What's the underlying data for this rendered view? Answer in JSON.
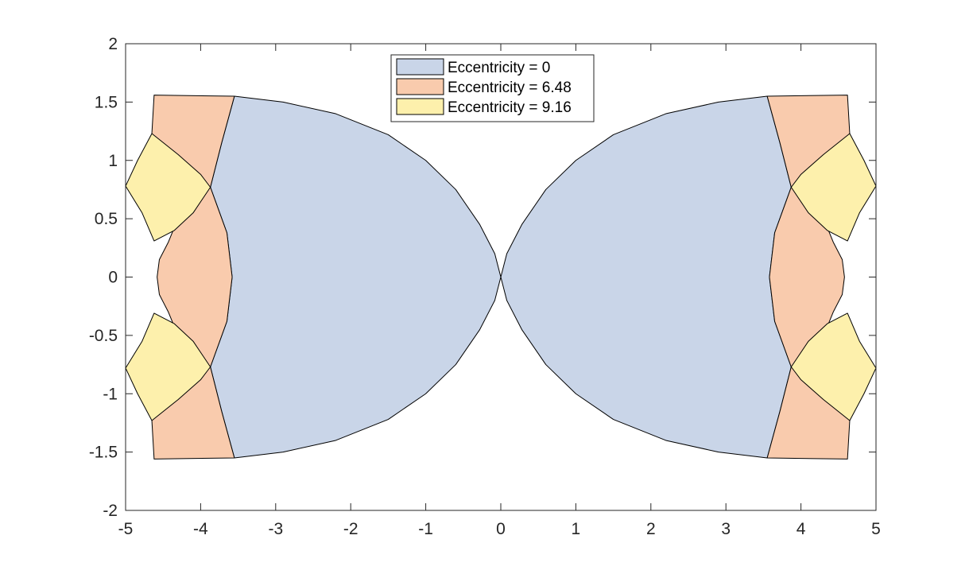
{
  "chart_data": {
    "type": "area",
    "title": "",
    "xlabel": "",
    "ylabel": "",
    "xlim": [
      -5,
      5
    ],
    "ylim": [
      -2,
      2
    ],
    "xticks": [
      "-5",
      "-4",
      "-3",
      "-2",
      "-1",
      "0",
      "1",
      "2",
      "3",
      "4",
      "5"
    ],
    "yticks": [
      "2",
      "1.5",
      "1",
      "0.5",
      "0",
      "-0.5",
      "-1",
      "-1.5",
      "-2"
    ],
    "grid": false,
    "legend_position": "top-center",
    "series": [
      {
        "name": "Eccentricity = 0",
        "color": "#c9d5e8",
        "regions": [
          {
            "points": [
              [
                -3.55,
                1.55
              ],
              [
                -2.9,
                1.5
              ],
              [
                -2.2,
                1.4
              ],
              [
                -1.5,
                1.22
              ],
              [
                -1.0,
                1.0
              ],
              [
                -0.6,
                0.75
              ],
              [
                -0.28,
                0.45
              ],
              [
                -0.08,
                0.2
              ],
              [
                0,
                0
              ],
              [
                -0.08,
                -0.2
              ],
              [
                -0.28,
                -0.45
              ],
              [
                -0.6,
                -0.75
              ],
              [
                -1.0,
                -1.0
              ],
              [
                -1.5,
                -1.22
              ],
              [
                -2.2,
                -1.4
              ],
              [
                -2.9,
                -1.5
              ],
              [
                -3.55,
                -1.55
              ],
              [
                -3.72,
                -1.15
              ],
              [
                -3.87,
                -0.77
              ],
              [
                -3.65,
                -0.38
              ],
              [
                -3.58,
                0
              ],
              [
                -3.65,
                0.38
              ],
              [
                -3.87,
                0.77
              ],
              [
                -3.72,
                1.15
              ]
            ]
          },
          {
            "points": [
              [
                3.55,
                1.55
              ],
              [
                2.9,
                1.5
              ],
              [
                2.2,
                1.4
              ],
              [
                1.5,
                1.22
              ],
              [
                1.0,
                1.0
              ],
              [
                0.6,
                0.75
              ],
              [
                0.28,
                0.45
              ],
              [
                0.08,
                0.2
              ],
              [
                0,
                0
              ],
              [
                0.08,
                -0.2
              ],
              [
                0.28,
                -0.45
              ],
              [
                0.6,
                -0.75
              ],
              [
                1.0,
                -1.0
              ],
              [
                1.5,
                -1.22
              ],
              [
                2.2,
                -1.4
              ],
              [
                2.9,
                -1.5
              ],
              [
                3.55,
                -1.55
              ],
              [
                3.72,
                -1.15
              ],
              [
                3.87,
                -0.77
              ],
              [
                3.65,
                -0.38
              ],
              [
                3.58,
                0
              ],
              [
                3.65,
                0.38
              ],
              [
                3.87,
                0.77
              ],
              [
                3.72,
                1.15
              ]
            ]
          }
        ]
      },
      {
        "name": "Eccentricity = 6.48",
        "color": "#f9cbad",
        "regions": [
          {
            "points": [
              [
                -4.62,
                1.56
              ],
              [
                -3.55,
                1.55
              ],
              [
                -3.72,
                1.15
              ],
              [
                -3.87,
                0.77
              ],
              [
                -3.65,
                0.38
              ],
              [
                -3.58,
                0
              ],
              [
                -3.65,
                -0.38
              ],
              [
                -3.87,
                -0.77
              ],
              [
                -3.72,
                -1.15
              ],
              [
                -3.55,
                -1.55
              ],
              [
                -4.62,
                -1.56
              ],
              [
                -4.65,
                -1.23
              ],
              [
                -4.43,
                -0.99
              ],
              [
                -4.29,
                -0.76
              ],
              [
                -4.29,
                -0.52
              ],
              [
                -4.43,
                -0.3
              ],
              [
                -4.55,
                -0.15
              ],
              [
                -4.58,
                0
              ],
              [
                -4.55,
                0.15
              ],
              [
                -4.43,
                0.3
              ],
              [
                -4.29,
                0.52
              ],
              [
                -4.29,
                0.76
              ],
              [
                -4.43,
                0.99
              ],
              [
                -4.65,
                1.23
              ]
            ]
          },
          {
            "points": [
              [
                4.62,
                1.56
              ],
              [
                3.55,
                1.55
              ],
              [
                3.72,
                1.15
              ],
              [
                3.87,
                0.77
              ],
              [
                3.65,
                0.38
              ],
              [
                3.58,
                0
              ],
              [
                3.65,
                -0.38
              ],
              [
                3.87,
                -0.77
              ],
              [
                3.72,
                -1.15
              ],
              [
                3.55,
                -1.55
              ],
              [
                4.62,
                -1.56
              ],
              [
                4.65,
                -1.23
              ],
              [
                4.43,
                -0.99
              ],
              [
                4.29,
                -0.76
              ],
              [
                4.29,
                -0.52
              ],
              [
                4.43,
                -0.3
              ],
              [
                4.55,
                -0.15
              ],
              [
                4.58,
                0
              ],
              [
                4.55,
                0.15
              ],
              [
                4.43,
                0.3
              ],
              [
                4.29,
                0.52
              ],
              [
                4.29,
                0.76
              ],
              [
                4.43,
                0.99
              ],
              [
                4.65,
                1.23
              ]
            ]
          }
        ]
      },
      {
        "name": "Eccentricity = 9.16",
        "color": "#fdf0ac",
        "regions": [
          {
            "points": [
              [
                -4.65,
                1.23
              ],
              [
                -4.3,
                1.05
              ],
              [
                -4.0,
                0.88
              ],
              [
                -3.87,
                0.77
              ],
              [
                -4.1,
                0.55
              ],
              [
                -4.35,
                0.4
              ],
              [
                -4.62,
                0.31
              ],
              [
                -4.78,
                0.55
              ],
              [
                -5.0,
                0.78
              ],
              [
                -4.84,
                1.0
              ]
            ]
          },
          {
            "points": [
              [
                -4.65,
                -1.23
              ],
              [
                -4.3,
                -1.05
              ],
              [
                -4.0,
                -0.88
              ],
              [
                -3.87,
                -0.77
              ],
              [
                -4.1,
                -0.55
              ],
              [
                -4.35,
                -0.4
              ],
              [
                -4.62,
                -0.31
              ],
              [
                -4.78,
                -0.55
              ],
              [
                -5.0,
                -0.78
              ],
              [
                -4.84,
                -1.0
              ]
            ]
          },
          {
            "points": [
              [
                4.65,
                1.23
              ],
              [
                4.3,
                1.05
              ],
              [
                4.0,
                0.88
              ],
              [
                3.87,
                0.77
              ],
              [
                4.1,
                0.55
              ],
              [
                4.35,
                0.4
              ],
              [
                4.62,
                0.31
              ],
              [
                4.78,
                0.55
              ],
              [
                5.0,
                0.78
              ],
              [
                4.84,
                1.0
              ]
            ]
          },
          {
            "points": [
              [
                4.65,
                -1.23
              ],
              [
                4.3,
                -1.05
              ],
              [
                4.0,
                -0.88
              ],
              [
                3.87,
                -0.77
              ],
              [
                4.1,
                -0.55
              ],
              [
                4.35,
                -0.4
              ],
              [
                4.62,
                -0.31
              ],
              [
                4.78,
                -0.55
              ],
              [
                5.0,
                -0.78
              ],
              [
                4.84,
                -1.0
              ]
            ]
          }
        ]
      }
    ]
  }
}
